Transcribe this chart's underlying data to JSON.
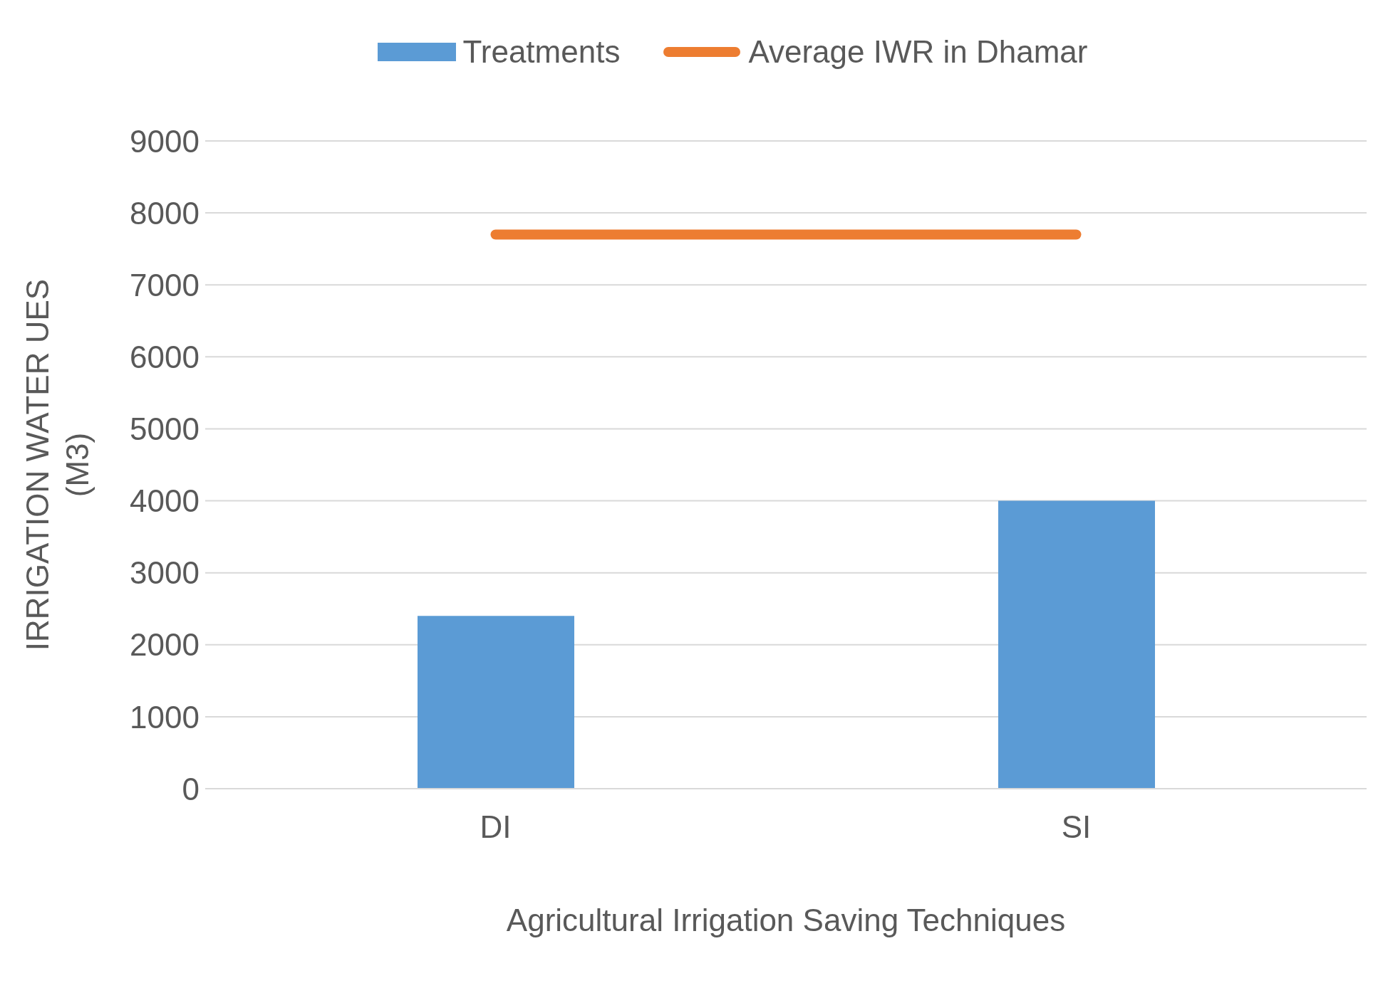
{
  "chart_data": {
    "type": "bar",
    "xlabel": "Agricultural Irrigation Saving Techniques",
    "ylabel": "IRRIGATION WATER UES (M3)",
    "categories": [
      "DI",
      "SI"
    ],
    "series": [
      {
        "name": "Treatments",
        "color": "#5b9bd5",
        "values": [
          2400,
          4000
        ]
      },
      {
        "name": "Average IWR in Dhamar",
        "type": "line",
        "color": "#ed7d31",
        "values": [
          7700,
          7700
        ]
      }
    ],
    "ylim": [
      0,
      9000
    ],
    "yticks": [
      0,
      1000,
      2000,
      3000,
      4000,
      5000,
      6000,
      7000,
      8000,
      9000
    ],
    "grid": "y",
    "legend": "top",
    "marker": "none",
    "line_style": "solid"
  }
}
